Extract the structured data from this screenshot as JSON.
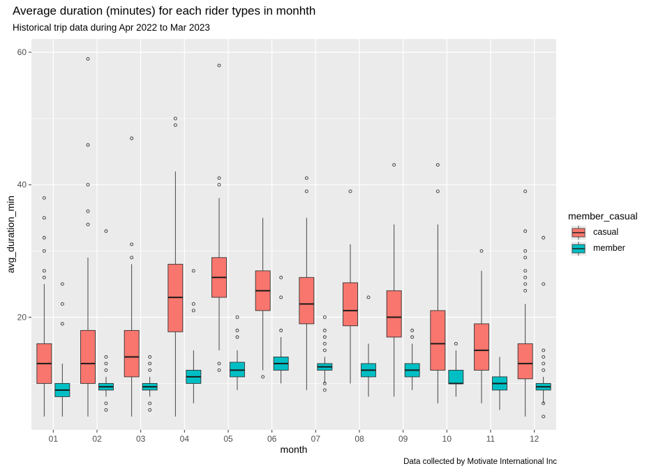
{
  "header": {
    "title": "Average duration (minutes) for each rider types in monhth",
    "subtitle": "Historical trip data during Apr 2022 to Mar 2023",
    "caption": "Data collected by Motivate International Inc"
  },
  "legend": {
    "title": "member_casual",
    "items": [
      {
        "label": "casual",
        "color": "#F8766D"
      },
      {
        "label": "member",
        "color": "#00BFC4"
      }
    ]
  },
  "chart_data": {
    "type": "boxplot",
    "title": "Average duration (minutes) for each rider types in monhth",
    "subtitle": "Historical trip data during Apr 2022 to Mar 2023",
    "xlabel": "month",
    "ylabel": "avg_duration_min",
    "ylim": [
      3,
      62
    ],
    "yticks": [
      20,
      40,
      60
    ],
    "grid": true,
    "legend_position": "right",
    "categories": [
      "01",
      "02",
      "03",
      "04",
      "05",
      "06",
      "07",
      "08",
      "09",
      "10",
      "11",
      "12"
    ],
    "series": [
      {
        "name": "casual",
        "color": "#F8766D",
        "boxes": [
          {
            "min": 5,
            "q1": 10,
            "median": 13,
            "q3": 16,
            "max": 25,
            "outliers": [
              26,
              27,
              30,
              32,
              35,
              38
            ]
          },
          {
            "min": 5,
            "q1": 10,
            "median": 13,
            "q3": 18,
            "max": 29,
            "outliers": [
              34,
              36,
              40,
              46,
              59
            ]
          },
          {
            "min": 5,
            "q1": 11,
            "median": 14,
            "q3": 18,
            "max": 28,
            "outliers": [
              29,
              31,
              47
            ]
          },
          {
            "min": 5,
            "q1": 17.8,
            "median": 23,
            "q3": 28,
            "max": 42,
            "outliers": [
              49,
              50
            ]
          },
          {
            "min": 15,
            "q1": 23,
            "median": 26,
            "q3": 29,
            "max": 38,
            "outliers": [
              12,
              13,
              40,
              41,
              58
            ]
          },
          {
            "min": 12,
            "q1": 21,
            "median": 24,
            "q3": 27,
            "max": 35,
            "outliers": [
              11
            ]
          },
          {
            "min": 9,
            "q1": 19,
            "median": 22,
            "q3": 26,
            "max": 35,
            "outliers": [
              39,
              41
            ]
          },
          {
            "min": 10,
            "q1": 18.7,
            "median": 21,
            "q3": 25.2,
            "max": 31,
            "outliers": [
              39
            ]
          },
          {
            "min": 8,
            "q1": 17,
            "median": 20,
            "q3": 24,
            "max": 34,
            "outliers": [
              43
            ]
          },
          {
            "min": 7,
            "q1": 12,
            "median": 16,
            "q3": 21,
            "max": 34,
            "outliers": [
              39,
              43
            ]
          },
          {
            "min": 7,
            "q1": 12,
            "median": 15,
            "q3": 19,
            "max": 27,
            "outliers": [
              30
            ]
          },
          {
            "min": 5,
            "q1": 10.7,
            "median": 13,
            "q3": 16,
            "max": 22,
            "outliers": [
              24,
              25,
              26,
              27,
              29,
              30,
              33,
              39
            ]
          }
        ]
      },
      {
        "name": "member",
        "color": "#00BFC4",
        "boxes": [
          {
            "min": 5,
            "q1": 8,
            "median": 9,
            "q3": 10,
            "max": 13,
            "outliers": [
              19,
              22,
              25
            ]
          },
          {
            "min": 8,
            "q1": 9,
            "median": 9.5,
            "q3": 10,
            "max": 11,
            "outliers": [
              6,
              7,
              12,
              13,
              14,
              33
            ]
          },
          {
            "min": 8,
            "q1": 9,
            "median": 9.5,
            "q3": 10,
            "max": 11,
            "outliers": [
              6,
              7,
              12,
              13,
              14
            ]
          },
          {
            "min": 7,
            "q1": 10,
            "median": 11,
            "q3": 12,
            "max": 15,
            "outliers": [
              21,
              22,
              27
            ]
          },
          {
            "min": 9,
            "q1": 11,
            "median": 12,
            "q3": 13.2,
            "max": 15,
            "outliers": [
              17,
              18,
              20
            ]
          },
          {
            "min": 10,
            "q1": 12,
            "median": 13,
            "q3": 14,
            "max": 17,
            "outliers": [
              18,
              23,
              26
            ]
          },
          {
            "min": 10,
            "q1": 12,
            "median": 12.5,
            "q3": 13,
            "max": 14,
            "outliers": [
              9,
              10,
              15,
              16,
              17,
              18,
              20
            ]
          },
          {
            "min": 8,
            "q1": 11,
            "median": 12,
            "q3": 13,
            "max": 16,
            "outliers": [
              23
            ]
          },
          {
            "min": 9,
            "q1": 11,
            "median": 12,
            "q3": 13,
            "max": 16,
            "outliers": [
              17,
              18
            ]
          },
          {
            "min": 8,
            "q1": 10,
            "median": 10,
            "q3": 12,
            "max": 15,
            "outliers": [
              16
            ]
          },
          {
            "min": 6,
            "q1": 9,
            "median": 10,
            "q3": 11,
            "max": 14,
            "outliers": []
          },
          {
            "min": 7,
            "q1": 9,
            "median": 9.5,
            "q3": 10,
            "max": 11,
            "outliers": [
              5,
              7,
              12,
              13,
              14,
              15,
              25,
              32
            ]
          }
        ]
      }
    ]
  }
}
